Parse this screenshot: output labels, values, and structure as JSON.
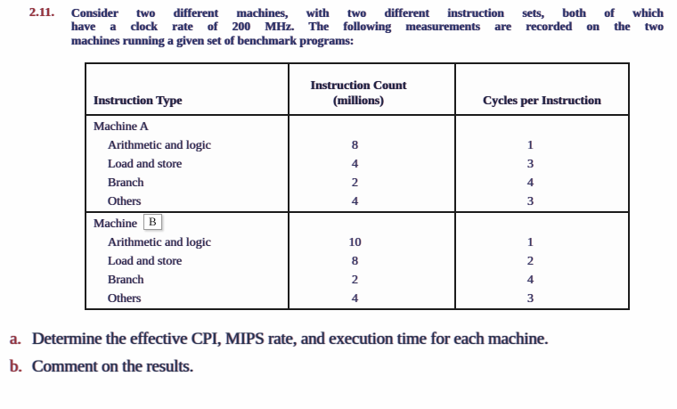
{
  "problem": {
    "number": "2.11.",
    "lines": [
      "Consider two different machines, with two different instruction sets, both of which",
      "have a clock rate of 200 MHz. The following measurements are recorded on the two",
      "machines running a given set of benchmark programs:"
    ]
  },
  "table": {
    "headers": {
      "col1": "Instruction Type",
      "col2_line1": "Instruction Count",
      "col2_line2": "(millions)",
      "col3": "Cycles per Instruction"
    },
    "groups": [
      {
        "label": "Machine A",
        "rows": [
          {
            "type": "Arithmetic and logic",
            "count": "8",
            "cpi": "1"
          },
          {
            "type": "Load and store",
            "count": "4",
            "cpi": "3"
          },
          {
            "type": "Branch",
            "count": "2",
            "cpi": "4"
          },
          {
            "type": "Others",
            "count": "4",
            "cpi": "3"
          }
        ]
      },
      {
        "label": "Machine",
        "boxed_letter": "B",
        "rows": [
          {
            "type": "Arithmetic and logic",
            "count": "10",
            "cpi": "1"
          },
          {
            "type": "Load and store",
            "count": "8",
            "cpi": "2"
          },
          {
            "type": "Branch",
            "count": "2",
            "cpi": "4"
          },
          {
            "type": "Others",
            "count": "4",
            "cpi": "3"
          }
        ]
      }
    ]
  },
  "questions": [
    {
      "marker": "a.",
      "text": "Determine the effective CPI, MIPS rate, and execution time for each machine."
    },
    {
      "marker": "b.",
      "text": "Comment on the results."
    }
  ],
  "colors": {
    "problem_number": "#97343a",
    "body_text": "#2c3468",
    "table_text": "#2a2c4e",
    "table_border": "#1c1c1c",
    "question_marker": "#933239",
    "question_text": "#25304a"
  }
}
